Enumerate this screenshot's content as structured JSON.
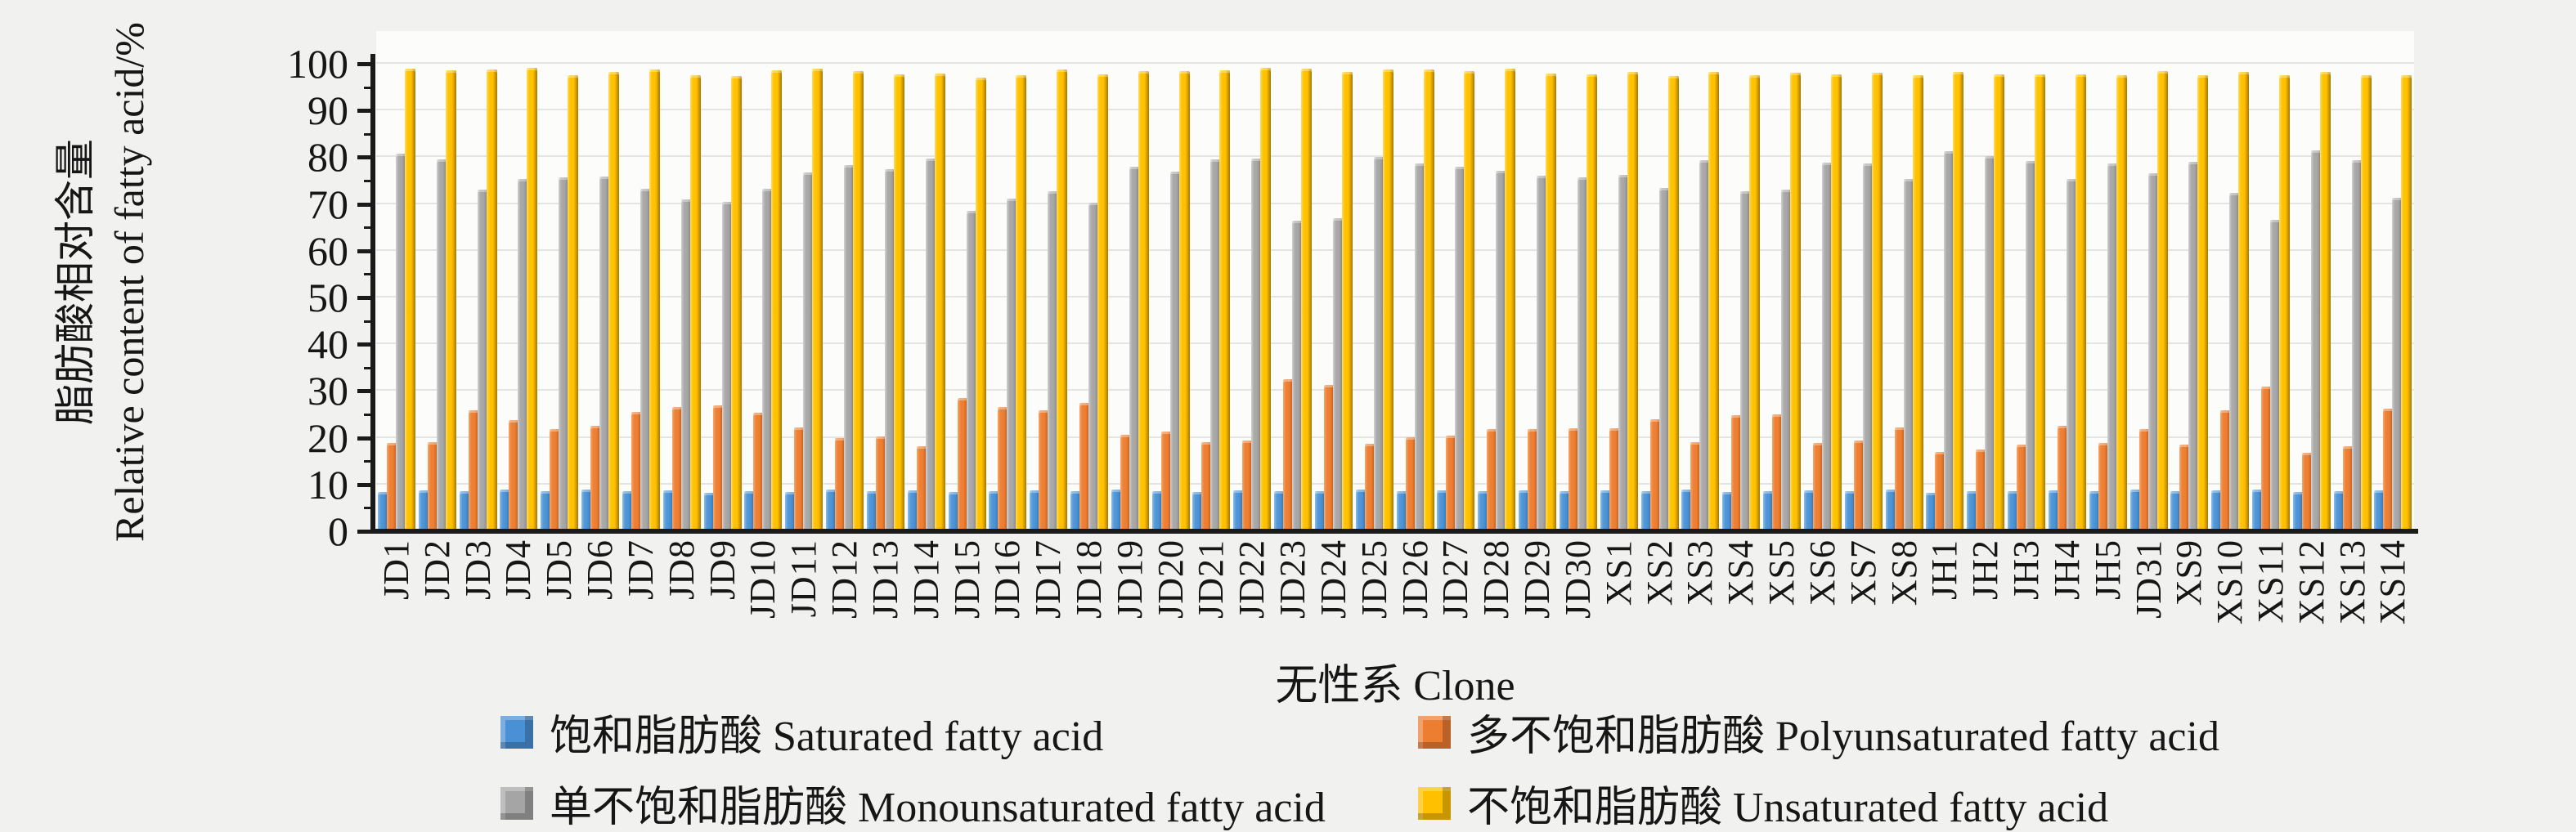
{
  "y_axis": {
    "title_zh": "脂肪酸相对含量",
    "title_en": "Relative content of fatty acid/%",
    "ticks": [
      0,
      10,
      20,
      30,
      40,
      50,
      60,
      70,
      80,
      90,
      100
    ]
  },
  "x_axis": {
    "title": "无性系 Clone"
  },
  "legend": {
    "position": "bottom",
    "items": [
      {
        "label": "饱和脂肪酸 Saturated fatty acid",
        "color": "#4a90d5",
        "series": "saturated"
      },
      {
        "label": "多不饱和脂肪酸 Polyunsaturated fatty acid",
        "color": "#ed7d31",
        "series": "polyunsaturated"
      },
      {
        "label": "单不饱和脂肪酸 Monounsaturated fatty acid",
        "color": "#a5a5a5",
        "series": "monounsaturated"
      },
      {
        "label": "不饱和脂肪酸 Unsaturated fatty acid",
        "color": "#ffc000",
        "series": "unsaturated"
      }
    ]
  },
  "chart_data": {
    "type": "bar",
    "title": "",
    "xlabel": "无性系 Clone",
    "ylabel": "脂肪酸相对含量 Relative content of fatty acid/%",
    "ylim": [
      0,
      100
    ],
    "grid": true,
    "categories": [
      "JD1",
      "JD2",
      "JD3",
      "JD4",
      "JD5",
      "JD6",
      "JD7",
      "JD8",
      "JD9",
      "JD10",
      "JD11",
      "JD12",
      "JD13",
      "JD14",
      "JD15",
      "JD16",
      "JD17",
      "JD18",
      "JD19",
      "JD20",
      "JD21",
      "JD22",
      "JD23",
      "JD24",
      "JD25",
      "JD26",
      "JD27",
      "JD28",
      "JD29",
      "JD30",
      "XS1",
      "XS2",
      "XS3",
      "XS4",
      "XS5",
      "XS6",
      "XS7",
      "XS8",
      "JH1",
      "JH2",
      "JH3",
      "JH4",
      "JH5",
      "JD31",
      "XS9",
      "XS10",
      "XS11",
      "XS12",
      "XS13",
      "XS14"
    ],
    "series": [
      {
        "name": "饱和脂肪酸 Saturated fatty acid",
        "values": [
          8.4,
          8.7,
          8.5,
          8.9,
          8.6,
          9.0,
          8.5,
          8.8,
          8.3,
          8.6,
          8.4,
          8.9,
          8.5,
          8.7,
          8.4,
          8.6,
          8.8,
          8.5,
          8.9,
          8.6,
          8.4,
          8.8,
          8.5,
          8.6,
          8.9,
          8.5,
          8.7,
          8.5,
          8.8,
          8.5,
          8.7,
          8.5,
          8.9,
          8.4,
          8.6,
          8.8,
          8.5,
          8.9,
          8.3,
          8.6,
          8.5,
          8.8,
          8.6,
          8.9,
          8.5,
          8.7,
          9.0,
          8.4,
          8.6,
          8.8
        ]
      },
      {
        "name": "多不饱和脂肪酸 Polyunsaturated fatty acid",
        "values": [
          18.9,
          19.1,
          25.8,
          23.8,
          21.9,
          22.5,
          25.5,
          26.5,
          26.9,
          25.4,
          22.2,
          20.0,
          20.3,
          18.2,
          28.5,
          26.5,
          25.9,
          27.5,
          20.6,
          21.4,
          19.0,
          19.4,
          32.5,
          31.3,
          18.7,
          20.1,
          20.4,
          21.9,
          21.8,
          22.0,
          22.0,
          23.9,
          19.0,
          24.8,
          25.0,
          18.8,
          19.4,
          22.2,
          17.0,
          17.5,
          18.5,
          22.5,
          18.9,
          21.9,
          18.5,
          25.9,
          31.0,
          16.8,
          18.2,
          26.2
        ]
      },
      {
        "name": "单不饱和脂肪酸 Monounsaturated fatty acid",
        "values": [
          80.8,
          79.5,
          73.0,
          75.3,
          75.7,
          75.8,
          73.2,
          71.0,
          70.4,
          73.2,
          76.8,
          78.4,
          77.5,
          79.7,
          68.5,
          71.1,
          72.8,
          70.3,
          77.9,
          77.0,
          79.6,
          79.7,
          66.4,
          67.0,
          80.1,
          78.6,
          78.0,
          77.1,
          76.1,
          75.7,
          76.3,
          73.5,
          79.3,
          72.8,
          73.0,
          78.9,
          78.6,
          75.3,
          81.3,
          80.3,
          79.2,
          75.3,
          78.7,
          76.5,
          79.0,
          72.4,
          66.6,
          81.5,
          79.4,
          71.3
        ]
      },
      {
        "name": "不饱和脂肪酸 Unsaturated fatty acid",
        "values": [
          99.0,
          98.6,
          98.8,
          99.1,
          97.6,
          98.3,
          98.7,
          97.5,
          97.3,
          98.6,
          99.0,
          98.4,
          97.8,
          97.9,
          97.0,
          97.6,
          98.7,
          97.8,
          98.5,
          98.4,
          98.6,
          99.1,
          98.9,
          98.3,
          98.8,
          98.7,
          98.4,
          99.0,
          97.9,
          97.7,
          98.3,
          97.4,
          98.3,
          97.6,
          98.0,
          97.7,
          98.0,
          97.5,
          98.3,
          97.8,
          97.7,
          97.8,
          97.6,
          98.4,
          97.5,
          98.3,
          97.6,
          98.3,
          97.6,
          97.5
        ]
      }
    ]
  }
}
